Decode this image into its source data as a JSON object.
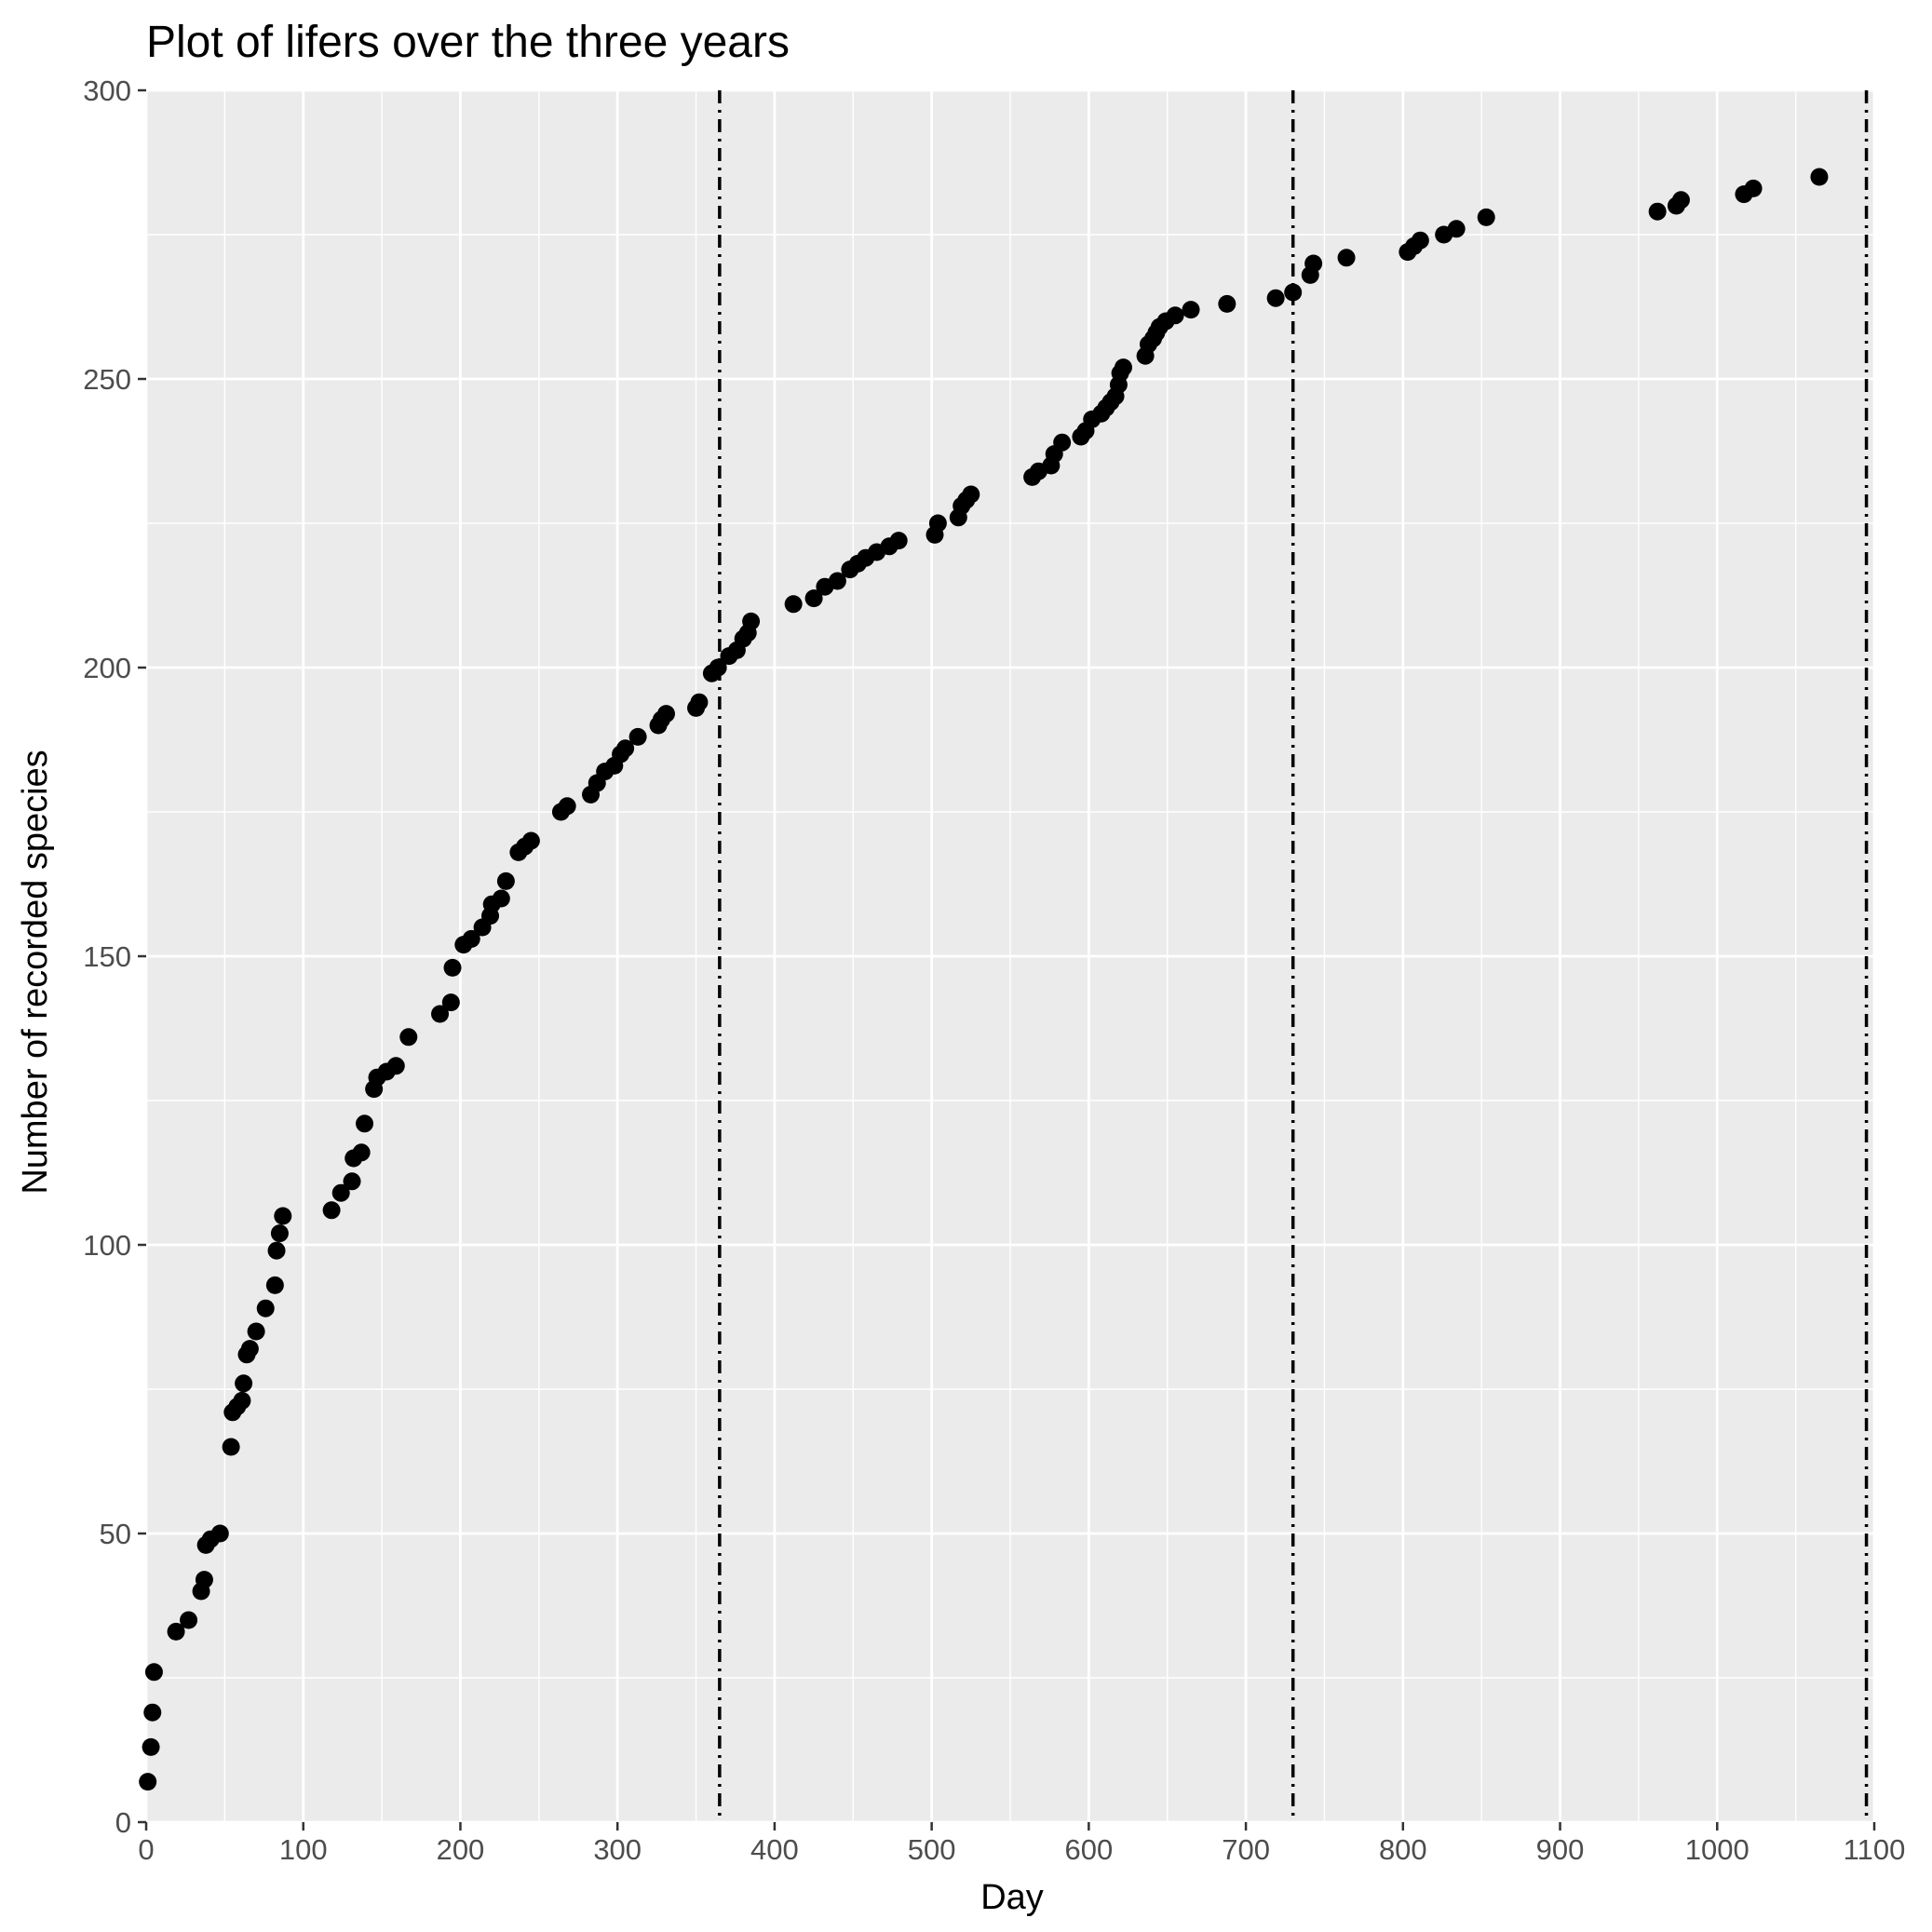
{
  "chart_data": {
    "type": "scatter",
    "title": "Plot of lifers over the three years",
    "xlabel": "Day",
    "ylabel": "Number of recorded species",
    "xlim": [
      0,
      1100
    ],
    "ylim": [
      0,
      300
    ],
    "xticks": [
      0,
      100,
      200,
      300,
      400,
      500,
      600,
      700,
      800,
      900,
      1000,
      1100
    ],
    "yticks": [
      0,
      50,
      100,
      150,
      200,
      250,
      300
    ],
    "grid": true,
    "legend": "none",
    "vlines": [
      {
        "x": 365,
        "style": "dashdot"
      },
      {
        "x": 730,
        "style": "dashdot"
      },
      {
        "x": 1095,
        "style": "dashdot"
      }
    ],
    "colors": {
      "panel": "#ebebeb",
      "grid": "#ffffff",
      "points": "#000000",
      "ticks": "#4d4d4d"
    },
    "series": [
      {
        "points": [
          [
            1,
            7
          ],
          [
            3,
            13
          ],
          [
            4,
            19
          ],
          [
            5,
            26
          ],
          [
            19,
            33
          ],
          [
            27,
            35
          ],
          [
            35,
            40
          ],
          [
            37,
            42
          ],
          [
            38,
            48
          ],
          [
            41,
            49
          ],
          [
            47,
            50
          ],
          [
            54,
            65
          ],
          [
            55,
            71
          ],
          [
            58,
            72
          ],
          [
            61,
            73
          ],
          [
            62,
            76
          ],
          [
            64,
            81
          ],
          [
            66,
            82
          ],
          [
            70,
            85
          ],
          [
            76,
            89
          ],
          [
            82,
            93
          ],
          [
            83,
            99
          ],
          [
            85,
            102
          ],
          [
            87,
            105
          ],
          [
            118,
            106
          ],
          [
            124,
            109
          ],
          [
            131,
            111
          ],
          [
            132,
            115
          ],
          [
            137,
            116
          ],
          [
            139,
            121
          ],
          [
            145,
            127
          ],
          [
            147,
            129
          ],
          [
            153,
            130
          ],
          [
            159,
            131
          ],
          [
            167,
            136
          ],
          [
            187,
            140
          ],
          [
            194,
            142
          ],
          [
            195,
            148
          ],
          [
            202,
            152
          ],
          [
            207,
            153
          ],
          [
            214,
            155
          ],
          [
            219,
            157
          ],
          [
            220,
            159
          ],
          [
            226,
            160
          ],
          [
            229,
            163
          ],
          [
            237,
            168
          ],
          [
            241,
            169
          ],
          [
            245,
            170
          ],
          [
            264,
            175
          ],
          [
            268,
            176
          ],
          [
            283,
            178
          ],
          [
            287,
            180
          ],
          [
            292,
            182
          ],
          [
            298,
            183
          ],
          [
            302,
            185
          ],
          [
            305,
            186
          ],
          [
            313,
            188
          ],
          [
            326,
            190
          ],
          [
            328,
            191
          ],
          [
            331,
            192
          ],
          [
            350,
            193
          ],
          [
            352,
            194
          ],
          [
            360,
            199
          ],
          [
            364,
            200
          ],
          [
            371,
            202
          ],
          [
            376,
            203
          ],
          [
            380,
            205
          ],
          [
            383,
            206
          ],
          [
            385,
            208
          ],
          [
            412,
            211
          ],
          [
            425,
            212
          ],
          [
            432,
            214
          ],
          [
            440,
            215
          ],
          [
            448,
            217
          ],
          [
            453,
            218
          ],
          [
            458,
            219
          ],
          [
            465,
            220
          ],
          [
            473,
            221
          ],
          [
            479,
            222
          ],
          [
            502,
            223
          ],
          [
            504,
            225
          ],
          [
            517,
            226
          ],
          [
            519,
            228
          ],
          [
            522,
            229
          ],
          [
            525,
            230
          ],
          [
            564,
            233
          ],
          [
            568,
            234
          ],
          [
            576,
            235
          ],
          [
            578,
            237
          ],
          [
            583,
            239
          ],
          [
            595,
            240
          ],
          [
            598,
            241
          ],
          [
            602,
            243
          ],
          [
            608,
            244
          ],
          [
            611,
            245
          ],
          [
            614,
            246
          ],
          [
            617,
            247
          ],
          [
            619,
            249
          ],
          [
            620,
            251
          ],
          [
            622,
            252
          ],
          [
            636,
            254
          ],
          [
            638,
            256
          ],
          [
            641,
            257
          ],
          [
            643,
            258
          ],
          [
            645,
            259
          ],
          [
            649,
            260
          ],
          [
            655,
            261
          ],
          [
            665,
            262
          ],
          [
            688,
            263
          ],
          [
            719,
            264
          ],
          [
            730,
            265
          ],
          [
            741,
            268
          ],
          [
            743,
            270
          ],
          [
            764,
            271
          ],
          [
            803,
            272
          ],
          [
            807,
            273
          ],
          [
            811,
            274
          ],
          [
            826,
            275
          ],
          [
            834,
            276
          ],
          [
            853,
            278
          ],
          [
            962,
            279
          ],
          [
            974,
            280
          ],
          [
            977,
            281
          ],
          [
            1017,
            282
          ],
          [
            1023,
            283
          ],
          [
            1065,
            285
          ]
        ]
      }
    ]
  }
}
